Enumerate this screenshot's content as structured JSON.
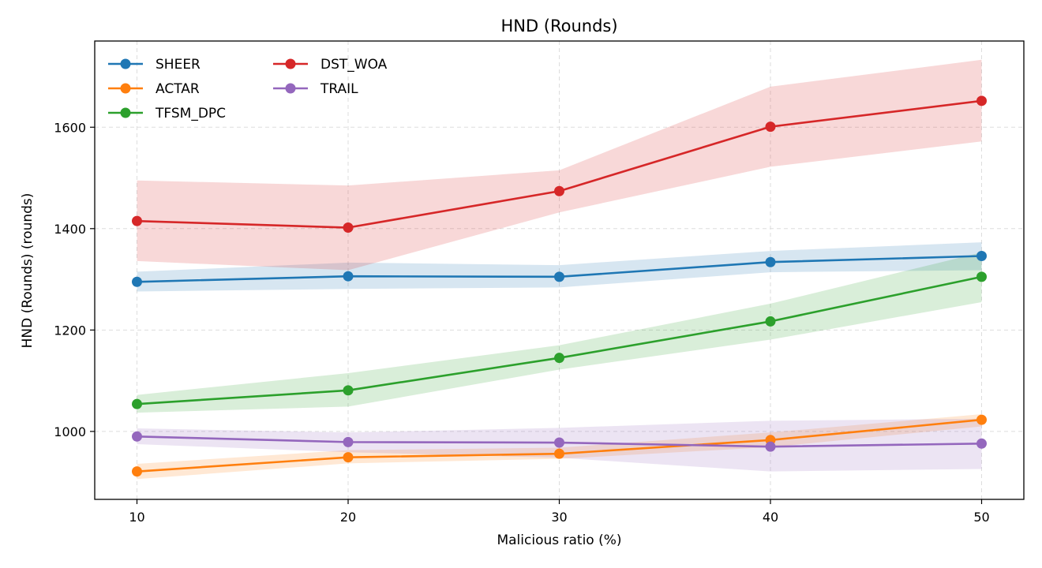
{
  "chart_data": {
    "type": "line",
    "title": "HND (Rounds)",
    "xlabel": "Malicious ratio (%)",
    "ylabel": "HND (Rounds) (rounds)",
    "x": [
      10,
      20,
      30,
      40,
      50
    ],
    "xlim": [
      8,
      52
    ],
    "ylim": [
      866,
      1770
    ],
    "xticks": [
      10,
      20,
      30,
      40,
      50
    ],
    "yticks": [
      1000,
      1200,
      1400,
      1600
    ],
    "grid": true,
    "grid_style": "dashed",
    "legend_position": "top-left",
    "legend_columns": 2,
    "series": [
      {
        "name": "SHEER",
        "color": "#1f77b4",
        "values": [
          1295,
          1306,
          1305,
          1334,
          1346
        ],
        "lower": [
          1276,
          1281,
          1284,
          1314,
          1318
        ],
        "upper": [
          1315,
          1333,
          1328,
          1356,
          1373
        ]
      },
      {
        "name": "ACTAR",
        "color": "#ff7f0e",
        "values": [
          921,
          949,
          956,
          983,
          1023
        ],
        "lower": [
          906,
          937,
          946,
          969,
          1010
        ],
        "upper": [
          936,
          963,
          968,
          998,
          1034
        ]
      },
      {
        "name": "TFSM_DPC",
        "color": "#2ca02c",
        "values": [
          1054,
          1081,
          1145,
          1217,
          1305
        ],
        "lower": [
          1037,
          1049,
          1122,
          1181,
          1255
        ],
        "upper": [
          1072,
          1115,
          1170,
          1252,
          1353
        ]
      },
      {
        "name": "DST_WOA",
        "color": "#d62728",
        "values": [
          1415,
          1402,
          1474,
          1601,
          1652
        ],
        "lower": [
          1336,
          1318,
          1432,
          1522,
          1572
        ],
        "upper": [
          1495,
          1485,
          1515,
          1680,
          1733
        ]
      },
      {
        "name": "TRAIL",
        "color": "#9467bd",
        "values": [
          990,
          979,
          978,
          970,
          976
        ],
        "lower": [
          975,
          959,
          948,
          921,
          926
        ],
        "upper": [
          1006,
          998,
          1007,
          1021,
          1025
        ]
      }
    ]
  }
}
